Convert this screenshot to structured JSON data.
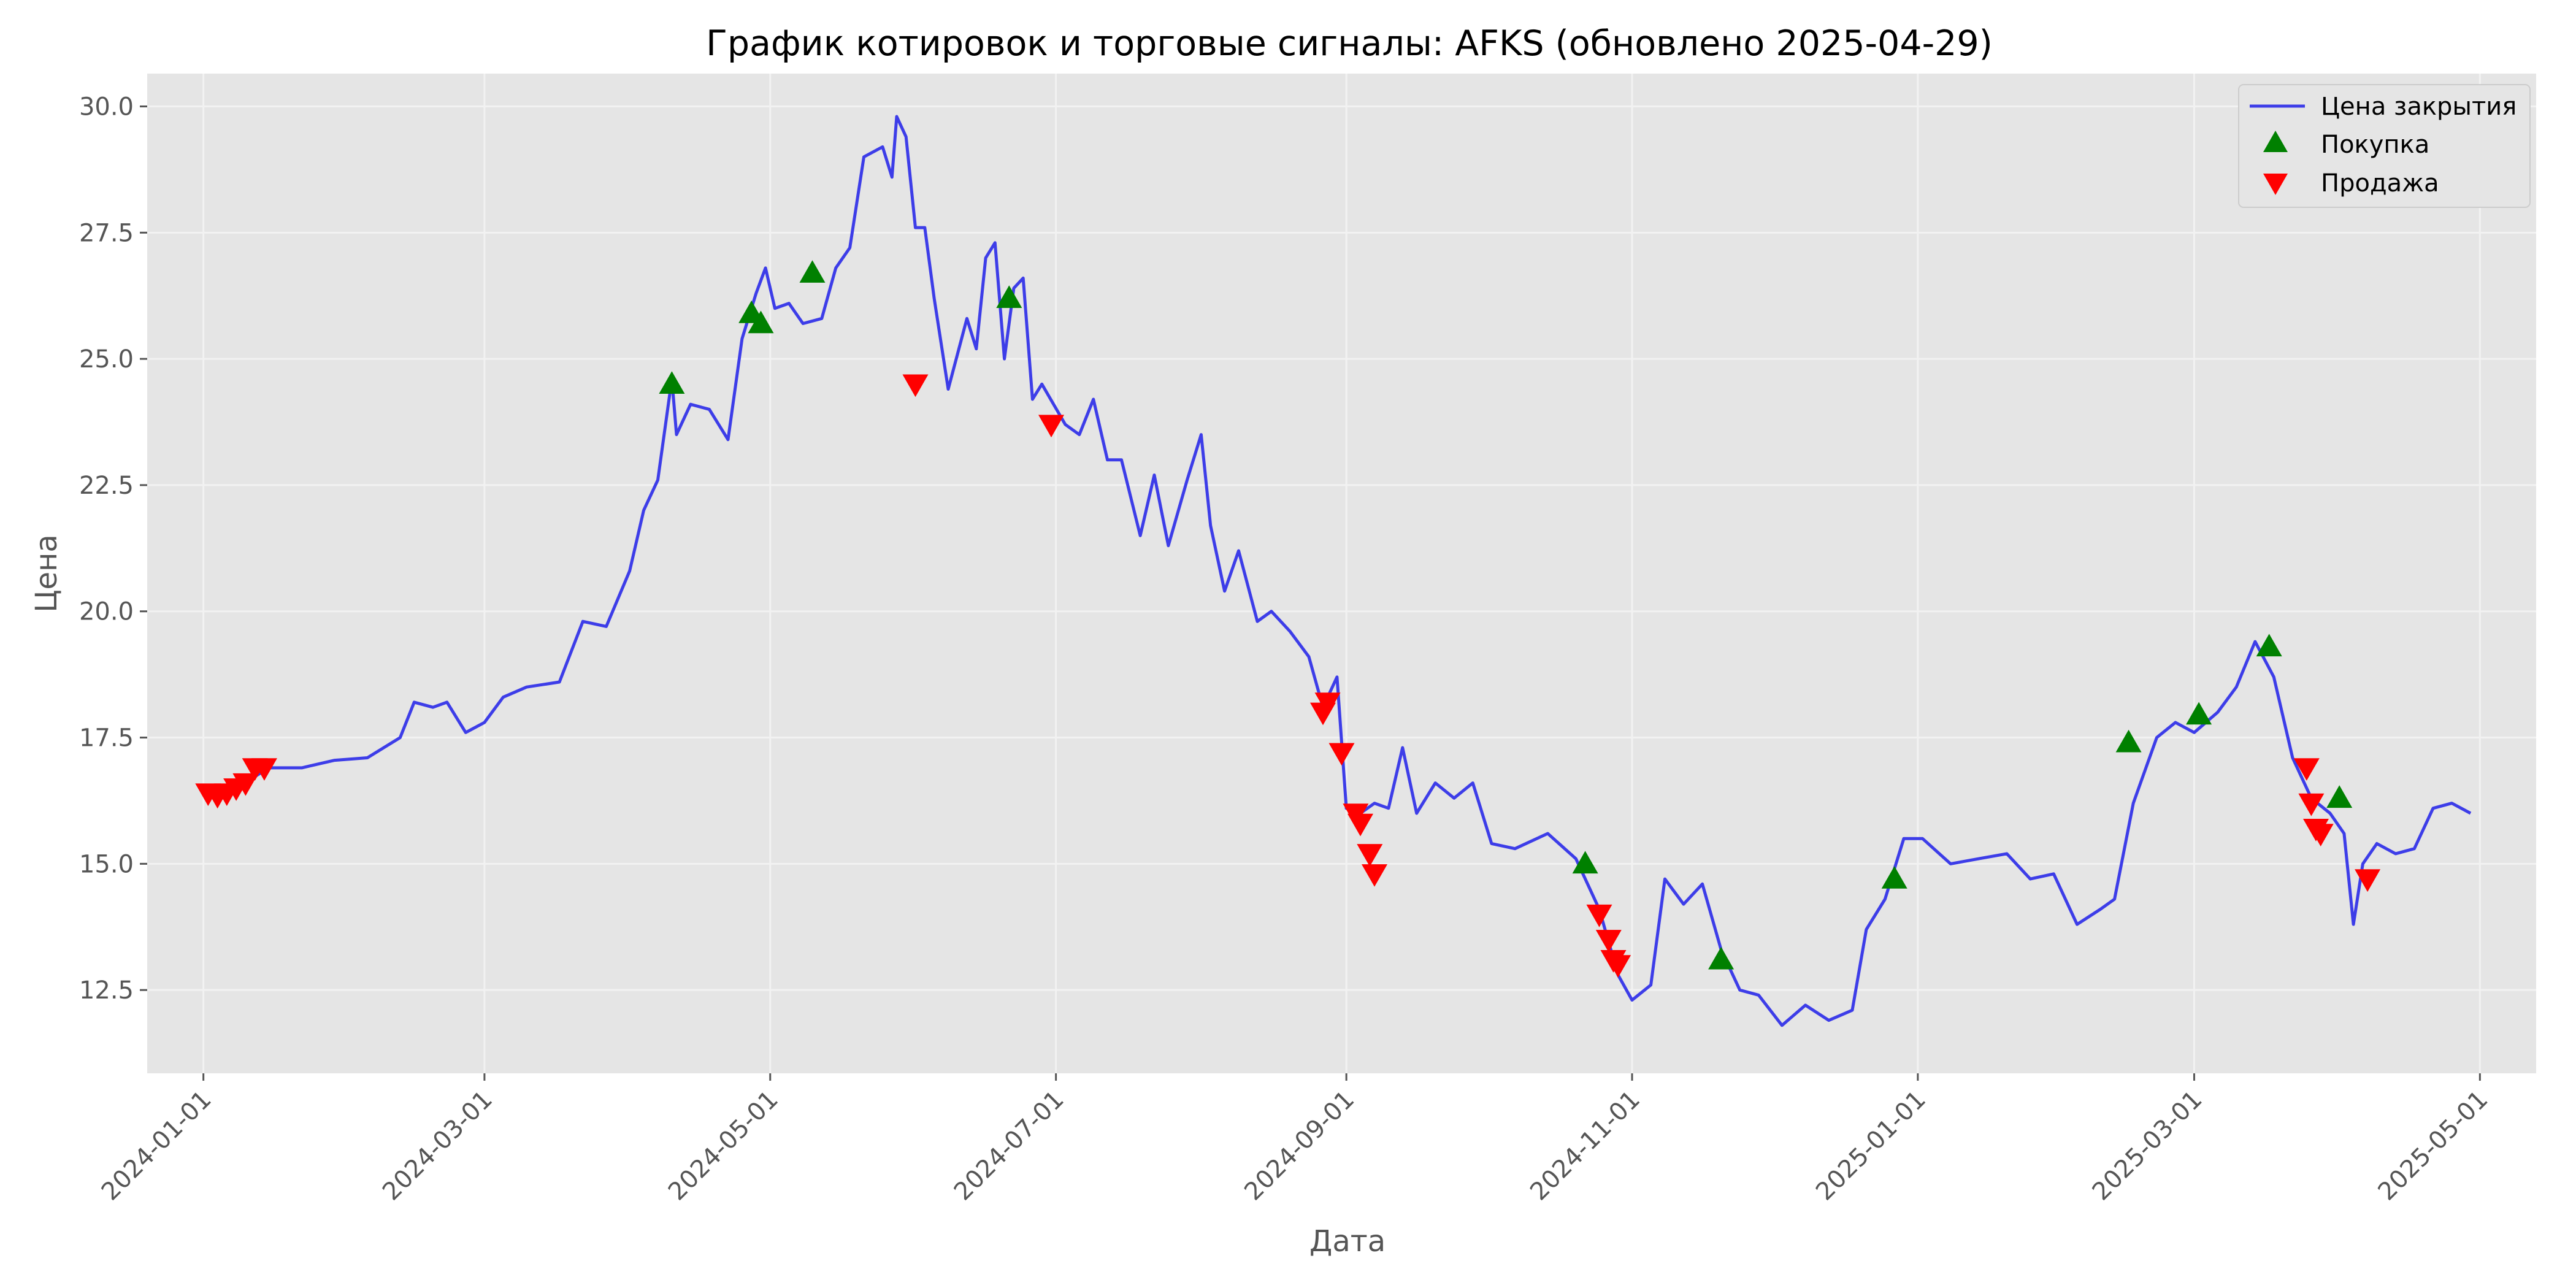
{
  "chart_data": {
    "type": "line",
    "title": "График котировок и торговые сигналы: AFKS (обновлено 2025-04-29)",
    "xlabel": "Дата",
    "ylabel": "Цена",
    "xlim": [
      "2023-12-20",
      "2025-05-13"
    ],
    "ylim": [
      10.85,
      30.65
    ],
    "x_ticks": [
      "2024-01-01",
      "2024-03-01",
      "2024-05-01",
      "2024-07-01",
      "2024-09-01",
      "2024-11-01",
      "2025-01-01",
      "2025-03-01",
      "2025-05-01"
    ],
    "y_ticks": [
      "12.5",
      "15.0",
      "17.5",
      "20.0",
      "22.5",
      "25.0",
      "27.5",
      "30.0"
    ],
    "grid": true,
    "legend_position": "top-right",
    "colors": {
      "line": "#3d3de8",
      "buy": "#008000",
      "sell": "#ff0000",
      "plot_bg": "#e5e5e5",
      "grid": "#f2f2f2"
    },
    "series": [
      {
        "name": "Цена закрытия",
        "kind": "line",
        "points": [
          [
            "2024-01-01",
            16.4
          ],
          [
            "2024-01-08",
            16.5
          ],
          [
            "2024-01-15",
            16.9
          ],
          [
            "2024-01-22",
            16.9
          ],
          [
            "2024-01-29",
            17.05
          ],
          [
            "2024-02-05",
            17.1
          ],
          [
            "2024-02-12",
            17.5
          ],
          [
            "2024-02-15",
            18.2
          ],
          [
            "2024-02-19",
            18.1
          ],
          [
            "2024-02-22",
            18.2
          ],
          [
            "2024-02-26",
            17.6
          ],
          [
            "2024-03-01",
            17.8
          ],
          [
            "2024-03-05",
            18.3
          ],
          [
            "2024-03-10",
            18.5
          ],
          [
            "2024-03-17",
            18.6
          ],
          [
            "2024-03-22",
            19.8
          ],
          [
            "2024-03-27",
            19.7
          ],
          [
            "2024-04-01",
            20.8
          ],
          [
            "2024-04-04",
            22.0
          ],
          [
            "2024-04-07",
            22.6
          ],
          [
            "2024-04-10",
            24.6
          ],
          [
            "2024-04-11",
            23.5
          ],
          [
            "2024-04-14",
            24.1
          ],
          [
            "2024-04-18",
            24.0
          ],
          [
            "2024-04-22",
            23.4
          ],
          [
            "2024-04-25",
            25.4
          ],
          [
            "2024-04-28",
            26.3
          ],
          [
            "2024-04-30",
            26.8
          ],
          [
            "2024-05-02",
            26.0
          ],
          [
            "2024-05-05",
            26.1
          ],
          [
            "2024-05-08",
            25.7
          ],
          [
            "2024-05-12",
            25.8
          ],
          [
            "2024-05-15",
            26.8
          ],
          [
            "2024-05-18",
            27.2
          ],
          [
            "2024-05-21",
            29.0
          ],
          [
            "2024-05-25",
            29.2
          ],
          [
            "2024-05-27",
            28.6
          ],
          [
            "2024-05-28",
            29.8
          ],
          [
            "2024-05-30",
            29.4
          ],
          [
            "2024-06-01",
            27.6
          ],
          [
            "2024-06-03",
            27.6
          ],
          [
            "2024-06-05",
            26.2
          ],
          [
            "2024-06-08",
            24.4
          ],
          [
            "2024-06-12",
            25.8
          ],
          [
            "2024-06-14",
            25.2
          ],
          [
            "2024-06-16",
            27.0
          ],
          [
            "2024-06-18",
            27.3
          ],
          [
            "2024-06-20",
            25.0
          ],
          [
            "2024-06-22",
            26.4
          ],
          [
            "2024-06-24",
            26.6
          ],
          [
            "2024-06-26",
            24.2
          ],
          [
            "2024-06-28",
            24.5
          ],
          [
            "2024-07-03",
            23.7
          ],
          [
            "2024-07-06",
            23.5
          ],
          [
            "2024-07-09",
            24.2
          ],
          [
            "2024-07-12",
            23.0
          ],
          [
            "2024-07-15",
            23.0
          ],
          [
            "2024-07-19",
            21.5
          ],
          [
            "2024-07-22",
            22.7
          ],
          [
            "2024-07-25",
            21.3
          ],
          [
            "2024-07-29",
            22.6
          ],
          [
            "2024-08-01",
            23.5
          ],
          [
            "2024-08-03",
            21.7
          ],
          [
            "2024-08-06",
            20.4
          ],
          [
            "2024-08-09",
            21.2
          ],
          [
            "2024-08-13",
            19.8
          ],
          [
            "2024-08-16",
            20.0
          ],
          [
            "2024-08-20",
            19.6
          ],
          [
            "2024-08-24",
            19.1
          ],
          [
            "2024-08-27",
            18.1
          ],
          [
            "2024-08-30",
            18.7
          ],
          [
            "2024-09-01",
            16.1
          ],
          [
            "2024-09-04",
            16.0
          ],
          [
            "2024-09-07",
            16.2
          ],
          [
            "2024-09-10",
            16.1
          ],
          [
            "2024-09-13",
            17.3
          ],
          [
            "2024-09-16",
            16.0
          ],
          [
            "2024-09-20",
            16.6
          ],
          [
            "2024-09-24",
            16.3
          ],
          [
            "2024-09-28",
            16.6
          ],
          [
            "2024-10-02",
            15.4
          ],
          [
            "2024-10-07",
            15.3
          ],
          [
            "2024-10-14",
            15.6
          ],
          [
            "2024-10-20",
            15.1
          ],
          [
            "2024-10-25",
            14.1
          ],
          [
            "2024-10-29",
            12.8
          ],
          [
            "2024-11-01",
            12.3
          ],
          [
            "2024-11-05",
            12.6
          ],
          [
            "2024-11-08",
            14.7
          ],
          [
            "2024-11-12",
            14.2
          ],
          [
            "2024-11-16",
            14.6
          ],
          [
            "2024-11-20",
            13.3
          ],
          [
            "2024-11-24",
            12.5
          ],
          [
            "2024-11-28",
            12.4
          ],
          [
            "2024-12-03",
            11.8
          ],
          [
            "2024-12-08",
            12.2
          ],
          [
            "2024-12-13",
            11.9
          ],
          [
            "2024-12-18",
            12.1
          ],
          [
            "2024-12-21",
            13.7
          ],
          [
            "2024-12-25",
            14.3
          ],
          [
            "2024-12-29",
            15.5
          ],
          [
            "2025-01-02",
            15.5
          ],
          [
            "2025-01-08",
            15.0
          ],
          [
            "2025-01-14",
            15.1
          ],
          [
            "2025-01-20",
            15.2
          ],
          [
            "2025-01-25",
            14.7
          ],
          [
            "2025-01-30",
            14.8
          ],
          [
            "2025-02-04",
            13.8
          ],
          [
            "2025-02-09",
            14.1
          ],
          [
            "2025-02-12",
            14.3
          ],
          [
            "2025-02-16",
            16.2
          ],
          [
            "2025-02-21",
            17.5
          ],
          [
            "2025-02-25",
            17.8
          ],
          [
            "2025-03-01",
            17.6
          ],
          [
            "2025-03-06",
            18.0
          ],
          [
            "2025-03-10",
            18.5
          ],
          [
            "2025-03-14",
            19.4
          ],
          [
            "2025-03-18",
            18.7
          ],
          [
            "2025-03-22",
            17.1
          ],
          [
            "2025-03-26",
            16.3
          ],
          [
            "2025-03-30",
            16.0
          ],
          [
            "2025-04-02",
            15.6
          ],
          [
            "2025-04-04",
            13.8
          ],
          [
            "2025-04-06",
            15.0
          ],
          [
            "2025-04-09",
            15.4
          ],
          [
            "2025-04-13",
            15.2
          ],
          [
            "2025-04-17",
            15.3
          ],
          [
            "2025-04-21",
            16.1
          ],
          [
            "2025-04-25",
            16.2
          ],
          [
            "2025-04-29",
            16.0
          ]
        ]
      },
      {
        "name": "Покупка",
        "kind": "marker-up",
        "points": [
          [
            "2024-04-10",
            24.5
          ],
          [
            "2024-04-27",
            25.9
          ],
          [
            "2024-04-29",
            25.7
          ],
          [
            "2024-05-10",
            26.7
          ],
          [
            "2024-06-21",
            26.2
          ],
          [
            "2024-10-22",
            15.0
          ],
          [
            "2024-11-20",
            13.1
          ],
          [
            "2024-12-27",
            14.7
          ],
          [
            "2025-02-15",
            17.4
          ],
          [
            "2025-03-02",
            17.95
          ],
          [
            "2025-03-17",
            19.3
          ],
          [
            "2025-04-01",
            16.3
          ]
        ]
      },
      {
        "name": "Продажа",
        "kind": "marker-down",
        "points": [
          [
            "2024-01-02",
            16.4
          ],
          [
            "2024-01-04",
            16.35
          ],
          [
            "2024-01-06",
            16.4
          ],
          [
            "2024-01-08",
            16.5
          ],
          [
            "2024-01-10",
            16.6
          ],
          [
            "2024-01-12",
            16.9
          ],
          [
            "2024-01-14",
            16.9
          ],
          [
            "2024-06-01",
            24.5
          ],
          [
            "2024-06-30",
            23.7
          ],
          [
            "2024-08-27",
            18.0
          ],
          [
            "2024-08-28",
            18.2
          ],
          [
            "2024-08-31",
            17.2
          ],
          [
            "2024-09-03",
            16.0
          ],
          [
            "2024-09-04",
            15.8
          ],
          [
            "2024-09-06",
            15.2
          ],
          [
            "2024-09-07",
            14.8
          ],
          [
            "2024-10-25",
            14.0
          ],
          [
            "2024-10-27",
            13.5
          ],
          [
            "2024-10-28",
            13.1
          ],
          [
            "2024-10-29",
            13.0
          ],
          [
            "2025-03-25",
            16.9
          ],
          [
            "2025-03-26",
            16.2
          ],
          [
            "2025-03-27",
            15.7
          ],
          [
            "2025-03-28",
            15.6
          ],
          [
            "2025-04-07",
            14.7
          ]
        ]
      }
    ]
  }
}
